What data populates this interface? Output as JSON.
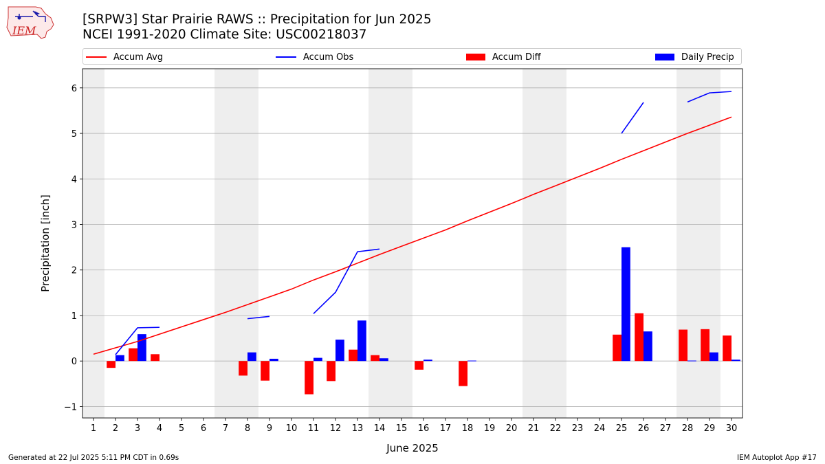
{
  "header": {
    "title_line1": "[SRPW3] Star Prairie RAWS :: Precipitation for Jun 2025",
    "title_line2": "NCEI 1991-2020 Climate Site: USC00218037",
    "logo_text": "IEM"
  },
  "footer": {
    "left": "Generated at 22 Jul 2025 5:11 PM CDT in 0.69s",
    "right": "IEM Autoplot App #17"
  },
  "colors": {
    "avg": "#ff0000",
    "obs": "#0000ff",
    "diff": "#ff0000",
    "daily": "#0000ff",
    "weekend_shade": "#eeeeee",
    "grid": "#b0b0b0"
  },
  "chart_data": {
    "type": "bar",
    "xlabel": "June 2025",
    "ylabel": "Precipitation [inch]",
    "xlim": [
      0.5,
      30.5
    ],
    "ylim": [
      -1.25,
      6.42
    ],
    "yticks": [
      -1,
      0,
      1,
      2,
      3,
      4,
      5,
      6
    ],
    "x": [
      1,
      2,
      3,
      4,
      5,
      6,
      7,
      8,
      9,
      10,
      11,
      12,
      13,
      14,
      15,
      16,
      17,
      18,
      19,
      20,
      21,
      22,
      23,
      24,
      25,
      26,
      27,
      28,
      29,
      30
    ],
    "legend": [
      "Accum Avg",
      "Accum Obs",
      "Accum Diff",
      "Daily Precip"
    ],
    "weekend_ranges": [
      [
        0.5,
        1.5
      ],
      [
        6.5,
        8.5
      ],
      [
        13.5,
        15.5
      ],
      [
        20.5,
        22.5
      ],
      [
        27.5,
        29.5
      ]
    ],
    "series": [
      {
        "name": "Accum Avg",
        "kind": "line",
        "values": [
          0.15,
          0.29,
          0.43,
          0.59,
          0.75,
          0.91,
          1.07,
          1.24,
          1.41,
          1.58,
          1.78,
          1.96,
          2.15,
          2.34,
          2.52,
          2.7,
          2.88,
          3.08,
          3.27,
          3.46,
          3.66,
          3.85,
          4.04,
          4.23,
          4.43,
          4.62,
          4.81,
          5.0,
          5.18,
          5.36
        ]
      },
      {
        "name": "Accum Obs",
        "kind": "line",
        "segments": [
          {
            "x": [
              2,
              3,
              4
            ],
            "y": [
              0.14,
              0.73,
              0.74
            ]
          },
          {
            "x": [
              8,
              9
            ],
            "y": [
              0.93,
              0.98
            ]
          },
          {
            "x": [
              11,
              12,
              13,
              14
            ],
            "y": [
              1.04,
              1.51,
              2.4,
              2.46
            ]
          },
          {
            "x": [
              25,
              26
            ],
            "y": [
              5.0,
              5.68
            ]
          },
          {
            "x": [
              28,
              29,
              30
            ],
            "y": [
              5.69,
              5.89,
              5.92
            ]
          }
        ]
      },
      {
        "name": "Accum Diff",
        "kind": "bar",
        "values": [
          0,
          -0.15,
          0.28,
          0.15,
          0,
          0,
          0,
          -0.32,
          -0.43,
          0,
          -0.73,
          -0.44,
          0.25,
          0.13,
          0,
          -0.19,
          0,
          -0.55,
          0,
          0,
          0,
          0,
          0,
          0,
          0.58,
          1.05,
          0,
          0.69,
          0.7,
          0.56
        ]
      },
      {
        "name": "Daily Precip",
        "kind": "bar",
        "values": [
          0,
          0.13,
          0.59,
          0,
          0,
          0,
          0,
          0.19,
          0.05,
          0,
          0.07,
          0.47,
          0.89,
          0.06,
          0,
          0.03,
          0,
          0.01,
          0,
          0,
          0,
          0,
          0,
          0,
          2.5,
          0.65,
          0,
          0.01,
          0.19,
          0.03
        ]
      }
    ]
  }
}
